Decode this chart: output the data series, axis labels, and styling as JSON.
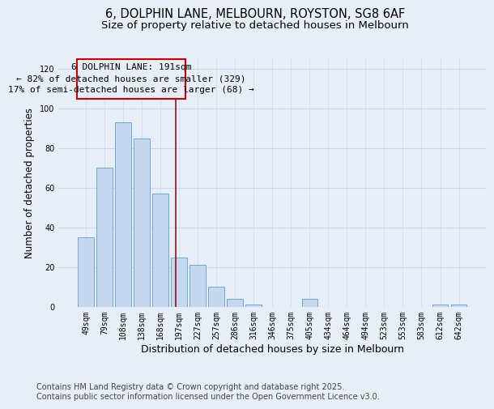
{
  "title_line1": "6, DOLPHIN LANE, MELBOURN, ROYSTON, SG8 6AF",
  "title_line2": "Size of property relative to detached houses in Melbourn",
  "xlabel": "Distribution of detached houses by size in Melbourn",
  "ylabel": "Number of detached properties",
  "categories": [
    "49sqm",
    "79sqm",
    "108sqm",
    "138sqm",
    "168sqm",
    "197sqm",
    "227sqm",
    "257sqm",
    "286sqm",
    "316sqm",
    "346sqm",
    "375sqm",
    "405sqm",
    "434sqm",
    "464sqm",
    "494sqm",
    "523sqm",
    "553sqm",
    "583sqm",
    "612sqm",
    "642sqm"
  ],
  "values": [
    35,
    70,
    93,
    85,
    57,
    25,
    21,
    10,
    4,
    1,
    0,
    0,
    4,
    0,
    0,
    0,
    0,
    0,
    0,
    1,
    1
  ],
  "bar_color": "#c5d8f0",
  "bar_edge_color": "#6aaad4",
  "background_color": "#e8eef8",
  "grid_color": "#d0d8e8",
  "annotation_box_label": "6 DOLPHIN LANE: 191sqm",
  "annotation_line1": "← 82% of detached houses are smaller (329)",
  "annotation_line2": "17% of semi-detached houses are larger (68) →",
  "vline_color": "#8b0000",
  "ylim": [
    0,
    125
  ],
  "yticks": [
    0,
    20,
    40,
    60,
    80,
    100,
    120
  ],
  "footnote_line1": "Contains HM Land Registry data © Crown copyright and database right 2025.",
  "footnote_line2": "Contains public sector information licensed under the Open Government Licence v3.0.",
  "title_fontsize": 10.5,
  "subtitle_fontsize": 9.5,
  "xlabel_fontsize": 9,
  "ylabel_fontsize": 8.5,
  "tick_fontsize": 7,
  "annotation_fontsize": 8,
  "footnote_fontsize": 7
}
